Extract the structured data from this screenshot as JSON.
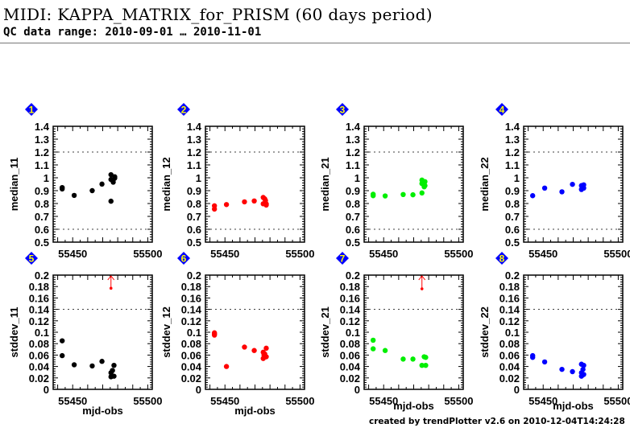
{
  "header": {
    "title": "MIDI: KAPPA_MATRIX_for_PRISM (60 days period)",
    "subtitle": "QC data range: 2010-09-01 … 2010-11-01"
  },
  "footer": "created by trendPlotter v2.6 on 2010-12-04T14:24:28",
  "colors": {
    "black": "#000000",
    "red": "#ff0000",
    "green": "#00ee00",
    "blue": "#0000ff",
    "badge_fill": "#0000ff",
    "badge_text": "#ffff00",
    "outlier": "#ff0000"
  },
  "chart_data": [
    {
      "type": "scatter",
      "badge": "1",
      "ylabel": "median_11",
      "xlabel": "",
      "color": "#000000",
      "xlim": [
        55437,
        55503
      ],
      "ylim": [
        0.5,
        1.4
      ],
      "yticks": [
        "0.5",
        "0.6",
        "0.7",
        "0.8",
        "0.9",
        "1",
        "1.1",
        "1.2",
        "1.3",
        "1.4"
      ],
      "xticks": [
        "55450",
        "55500"
      ],
      "reference_lines": [
        0.6,
        1.2
      ],
      "points": [
        [
          55443,
          0.924
        ],
        [
          55443,
          0.913
        ],
        [
          55451,
          0.863
        ],
        [
          55463,
          0.9
        ],
        [
          55469.5,
          0.951
        ],
        [
          55475.5,
          1.024
        ],
        [
          55475.5,
          0.987
        ],
        [
          55475.5,
          0.818
        ],
        [
          55477,
          0.966
        ],
        [
          55478,
          1.008
        ],
        [
          55478,
          0.997
        ],
        [
          55477,
          0.985
        ]
      ]
    },
    {
      "type": "scatter",
      "badge": "2",
      "ylabel": "median_12",
      "xlabel": "",
      "color": "#ff0000",
      "xlim": [
        55437,
        55503
      ],
      "ylim": [
        0.5,
        1.4
      ],
      "yticks": [
        "0.5",
        "0.6",
        "0.7",
        "0.8",
        "0.9",
        "1",
        "1.1",
        "1.2",
        "1.3",
        "1.4"
      ],
      "xticks": [
        "55450",
        "55500"
      ],
      "reference_lines": [
        0.6,
        1.2
      ],
      "points": [
        [
          55443,
          0.782
        ],
        [
          55443,
          0.757
        ],
        [
          55451,
          0.792
        ],
        [
          55463,
          0.813
        ],
        [
          55469.5,
          0.82
        ],
        [
          55475.5,
          0.847
        ],
        [
          55475.5,
          0.798
        ],
        [
          55476.5,
          0.836
        ],
        [
          55477,
          0.823
        ],
        [
          55477.5,
          0.797
        ],
        [
          55477.5,
          0.788
        ]
      ]
    },
    {
      "type": "scatter",
      "badge": "3",
      "ylabel": "median_21",
      "xlabel": "",
      "color": "#00ee00",
      "xlim": [
        55437,
        55503
      ],
      "ylim": [
        0.5,
        1.4
      ],
      "yticks": [
        "0.5",
        "0.6",
        "0.7",
        "0.8",
        "0.9",
        "1",
        "1.1",
        "1.2",
        "1.3",
        "1.4"
      ],
      "xticks": [
        "55450",
        "55500"
      ],
      "reference_lines": [
        0.6,
        1.2
      ],
      "points": [
        [
          55443,
          0.872
        ],
        [
          55443,
          0.861
        ],
        [
          55451,
          0.859
        ],
        [
          55463,
          0.87
        ],
        [
          55469.5,
          0.868
        ],
        [
          55475.5,
          0.882
        ],
        [
          55475.5,
          0.982
        ],
        [
          55475.5,
          0.955
        ],
        [
          55477.5,
          0.97
        ],
        [
          55477.5,
          0.939
        ],
        [
          55477,
          0.93
        ]
      ]
    },
    {
      "type": "scatter",
      "badge": "4",
      "ylabel": "median_22",
      "xlabel": "",
      "color": "#0000ff",
      "xlim": [
        55437,
        55503
      ],
      "ylim": [
        0.5,
        1.4
      ],
      "yticks": [
        "0.5",
        "0.6",
        "0.7",
        "0.8",
        "0.9",
        "1",
        "1.1",
        "1.2",
        "1.3",
        "1.4"
      ],
      "xticks": [
        "55450",
        "55500"
      ],
      "reference_lines": [
        0.6,
        1.2
      ],
      "points": [
        [
          55443,
          0.861
        ],
        [
          55451,
          0.92
        ],
        [
          55462.5,
          0.891
        ],
        [
          55469.5,
          0.949
        ],
        [
          55475.5,
          0.939
        ],
        [
          55475.5,
          0.909
        ],
        [
          55477,
          0.945
        ],
        [
          55477,
          0.92
        ]
      ]
    },
    {
      "type": "scatter",
      "badge": "5",
      "ylabel": "stddev_11",
      "xlabel": "mjd-obs",
      "color": "#000000",
      "xlim": [
        55437,
        55503
      ],
      "ylim": [
        0,
        0.2
      ],
      "yticks": [
        "0",
        "0.02",
        "0.04",
        "0.06",
        "0.08",
        "0.1",
        "0.12",
        "0.14",
        "0.16",
        "0.18",
        "0.2"
      ],
      "xticks": [
        "55450",
        "55500"
      ],
      "reference_lines": [
        0.14
      ],
      "points": [
        [
          55443,
          0.085
        ],
        [
          55443,
          0.059
        ],
        [
          55451,
          0.043
        ],
        [
          55463,
          0.041
        ],
        [
          55469.5,
          0.049
        ],
        [
          55475.5,
          0.029
        ],
        [
          55475.5,
          0.022
        ],
        [
          55476.5,
          0.033
        ],
        [
          55477.5,
          0.042
        ],
        [
          55477.5,
          0.023
        ]
      ],
      "outliers": [
        [
          55475.5,
          0.177
        ]
      ]
    },
    {
      "type": "scatter",
      "badge": "6",
      "ylabel": "stddev_12",
      "xlabel": "mjd-obs",
      "color": "#ff0000",
      "xlim": [
        55437,
        55503
      ],
      "ylim": [
        0,
        0.2
      ],
      "yticks": [
        "0",
        "0.02",
        "0.04",
        "0.06",
        "0.08",
        "0.1",
        "0.12",
        "0.14",
        "0.16",
        "0.18",
        "0.2"
      ],
      "xticks": [
        "55450",
        "55500"
      ],
      "reference_lines": [
        0.14
      ],
      "points": [
        [
          55443,
          0.097
        ],
        [
          55443,
          0.095
        ],
        [
          55443,
          0.099
        ],
        [
          55451,
          0.04
        ],
        [
          55463,
          0.074
        ],
        [
          55469.5,
          0.068
        ],
        [
          55475.5,
          0.065
        ],
        [
          55475.5,
          0.054
        ],
        [
          55476.5,
          0.062
        ],
        [
          55477.5,
          0.072
        ],
        [
          55477.5,
          0.057
        ],
        [
          55476,
          0.06
        ]
      ]
    },
    {
      "type": "scatter",
      "badge": "7",
      "ylabel": "stddev_21",
      "xlabel": "mjd-obs",
      "color": "#00ee00",
      "xlim": [
        55437,
        55503
      ],
      "ylim": [
        0,
        0.2
      ],
      "yticks": [
        "0",
        "0.02",
        "0.04",
        "0.06",
        "0.08",
        "0.1",
        "0.12",
        "0.14",
        "0.16",
        "0.18",
        "0.2"
      ],
      "xticks": [
        "55450",
        "55500"
      ],
      "reference_lines": [
        0.14
      ],
      "points": [
        [
          55443,
          0.086
        ],
        [
          55443,
          0.071
        ],
        [
          55451,
          0.068
        ],
        [
          55463,
          0.053
        ],
        [
          55469.5,
          0.053
        ],
        [
          55475.5,
          0.042
        ],
        [
          55477,
          0.057
        ],
        [
          55478,
          0.042
        ],
        [
          55478,
          0.056
        ]
      ],
      "outliers": [
        [
          55475.5,
          0.176
        ]
      ]
    },
    {
      "type": "scatter",
      "badge": "8",
      "ylabel": "stddev_22",
      "xlabel": "mjd-obs",
      "color": "#0000ff",
      "xlim": [
        55437,
        55503
      ],
      "ylim": [
        0,
        0.2
      ],
      "yticks": [
        "0",
        "0.02",
        "0.04",
        "0.06",
        "0.08",
        "0.1",
        "0.12",
        "0.14",
        "0.16",
        "0.18",
        "0.2"
      ],
      "xticks": [
        "55450",
        "55500"
      ],
      "reference_lines": [
        0.14
      ],
      "points": [
        [
          55443,
          0.059
        ],
        [
          55443,
          0.056
        ],
        [
          55451,
          0.048
        ],
        [
          55462.5,
          0.035
        ],
        [
          55469.5,
          0.031
        ],
        [
          55475.5,
          0.044
        ],
        [
          55477,
          0.042
        ],
        [
          55476.5,
          0.035
        ],
        [
          55475.5,
          0.029
        ],
        [
          55475.5,
          0.023
        ],
        [
          55477,
          0.026
        ]
      ]
    }
  ]
}
